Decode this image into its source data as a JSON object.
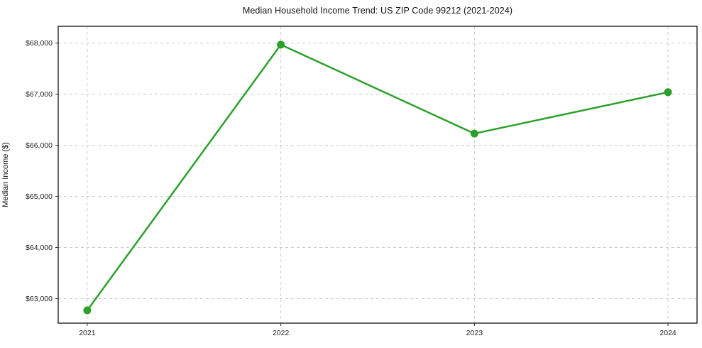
{
  "chart_data": {
    "type": "line",
    "title": "Median Household Income Trend: US ZIP Code 99212 (2021-2024)",
    "xlabel": "",
    "ylabel": "Median Income ($)",
    "x": [
      2021,
      2022,
      2023,
      2024
    ],
    "x_tick_labels": [
      "2021",
      "2022",
      "2023",
      "2024"
    ],
    "series": [
      {
        "name": "Median household income",
        "values": [
          62770,
          67970,
          66230,
          67040
        ],
        "color": "#2ca02c",
        "marker": "circle",
        "line_width": 2.5,
        "marker_radius": 5.5
      }
    ],
    "y_ticks": [
      63000,
      64000,
      65000,
      66000,
      67000,
      68000
    ],
    "y_tick_labels": [
      "$63,000",
      "$64,000",
      "$65,000",
      "$66,000",
      "$67,000",
      "$68,000"
    ],
    "xlim": [
      2020.85,
      2024.15
    ],
    "ylim": [
      62520,
      68330
    ],
    "grid": "dashed",
    "grid_color": "#cccccc",
    "spine_color": "#000000",
    "tick_color": "#333333",
    "legend": "none",
    "background": "#ffffff"
  }
}
